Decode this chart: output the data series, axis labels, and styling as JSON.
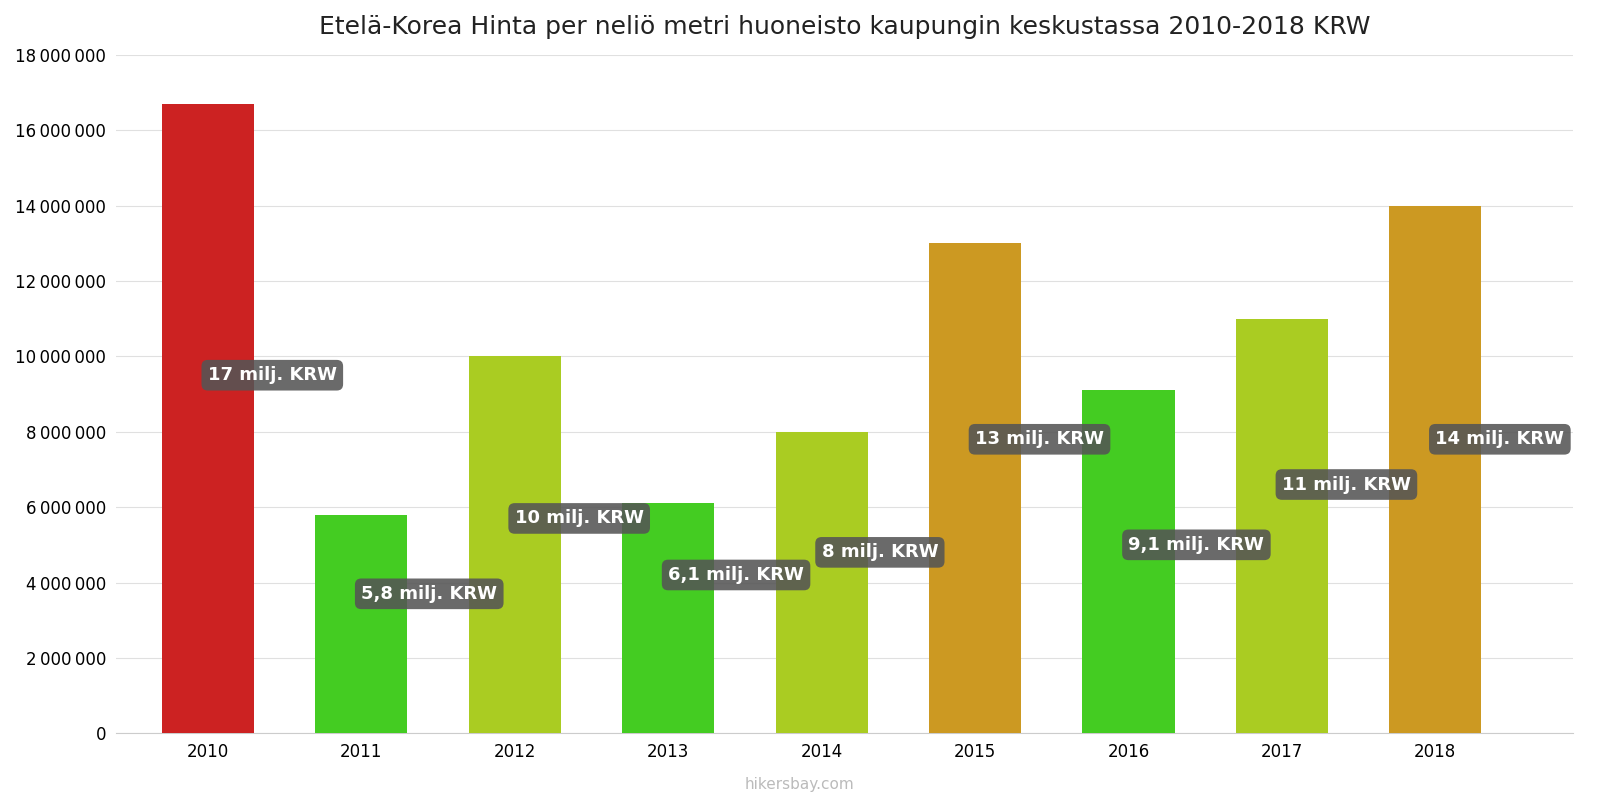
{
  "title": "Etelä-Korea Hinta per neliö metri huoneisto kaupungin keskustassa 2010-2018 KRW",
  "years": [
    2010,
    2011,
    2012,
    2013,
    2014,
    2015,
    2016,
    2017,
    2018
  ],
  "values": [
    16700000,
    5800000,
    10000000,
    6100000,
    8000000,
    13000000,
    9100000,
    11000000,
    14000000
  ],
  "bar_colors": [
    "#cc2222",
    "#44cc22",
    "#aacc22",
    "#44cc22",
    "#aacc22",
    "#cc9922",
    "#44cc22",
    "#aacc22",
    "#cc9922"
  ],
  "labels": [
    "17 milj. KRW",
    "5,8 milj. KRW",
    "10 milj. KRW",
    "6,1 milj. KRW",
    "8 milj. KRW",
    "13 milj. KRW",
    "9,1 milj. KRW",
    "11 milj. KRW",
    "14 milj. KRW"
  ],
  "label_x_offsets": [
    0.0,
    0.0,
    0.0,
    0.0,
    0.0,
    0.0,
    0.0,
    0.0,
    0.0
  ],
  "label_y_positions": [
    9500000,
    3700000,
    5700000,
    4200000,
    4800000,
    7800000,
    5000000,
    6600000,
    7800000
  ],
  "ylim": [
    0,
    18000000
  ],
  "yticks": [
    0,
    2000000,
    4000000,
    6000000,
    8000000,
    10000000,
    12000000,
    14000000,
    16000000,
    18000000
  ],
  "watermark": "hikersbay.com",
  "background_color": "#ffffff",
  "title_fontsize": 18,
  "tick_fontsize": 12,
  "label_box_color": "#555555",
  "label_text_color": "#ffffff",
  "label_fontsize": 13,
  "bar_width": 0.6,
  "xlim_left": 2009.4,
  "xlim_right": 2018.9
}
